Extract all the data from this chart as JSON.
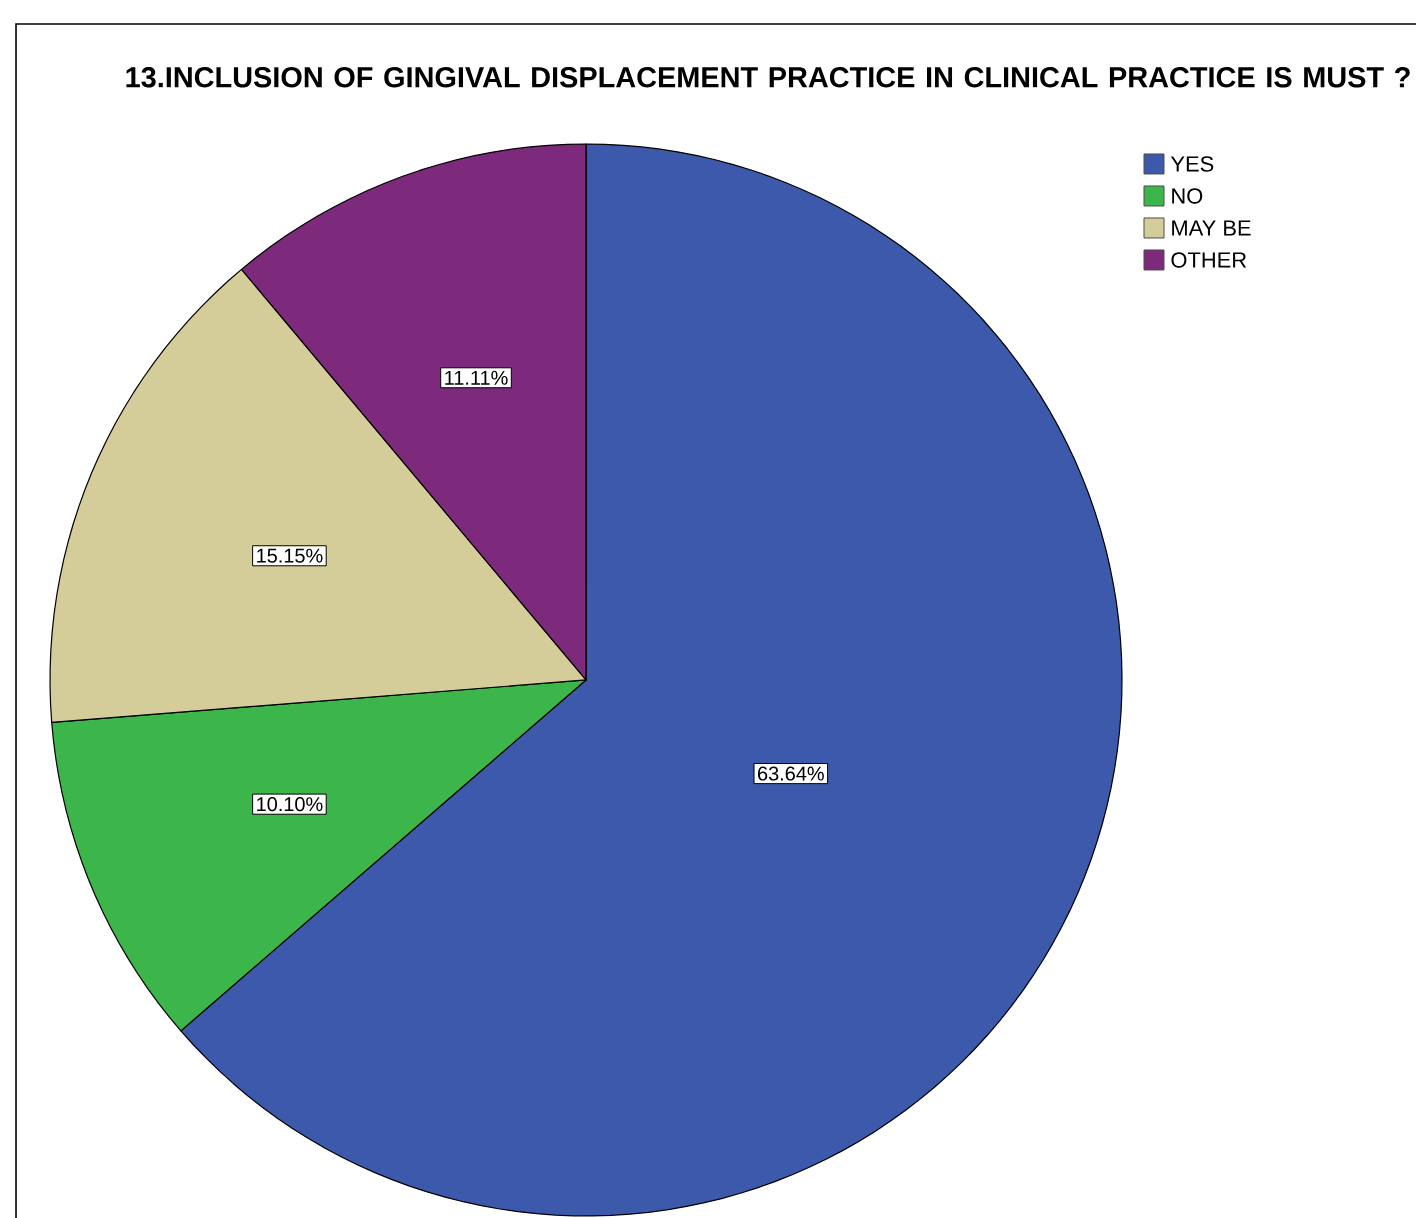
{
  "chart_data": {
    "type": "pie",
    "title": "13.INCLUSION OF GINGIVAL DISPLACEMENT PRACTICE IN CLINICAL PRACTICE IS MUST ?",
    "categories": [
      "YES",
      "NO",
      "MAY BE",
      "OTHER"
    ],
    "values": [
      63.64,
      10.1,
      15.15,
      11.11
    ],
    "colors": [
      "#3d59ab",
      "#3cb54a",
      "#d5cd99",
      "#7d2a7d"
    ],
    "value_labels": [
      "63.64%",
      "10.10%",
      "15.15%",
      "11.11%"
    ],
    "legend": "top right"
  }
}
